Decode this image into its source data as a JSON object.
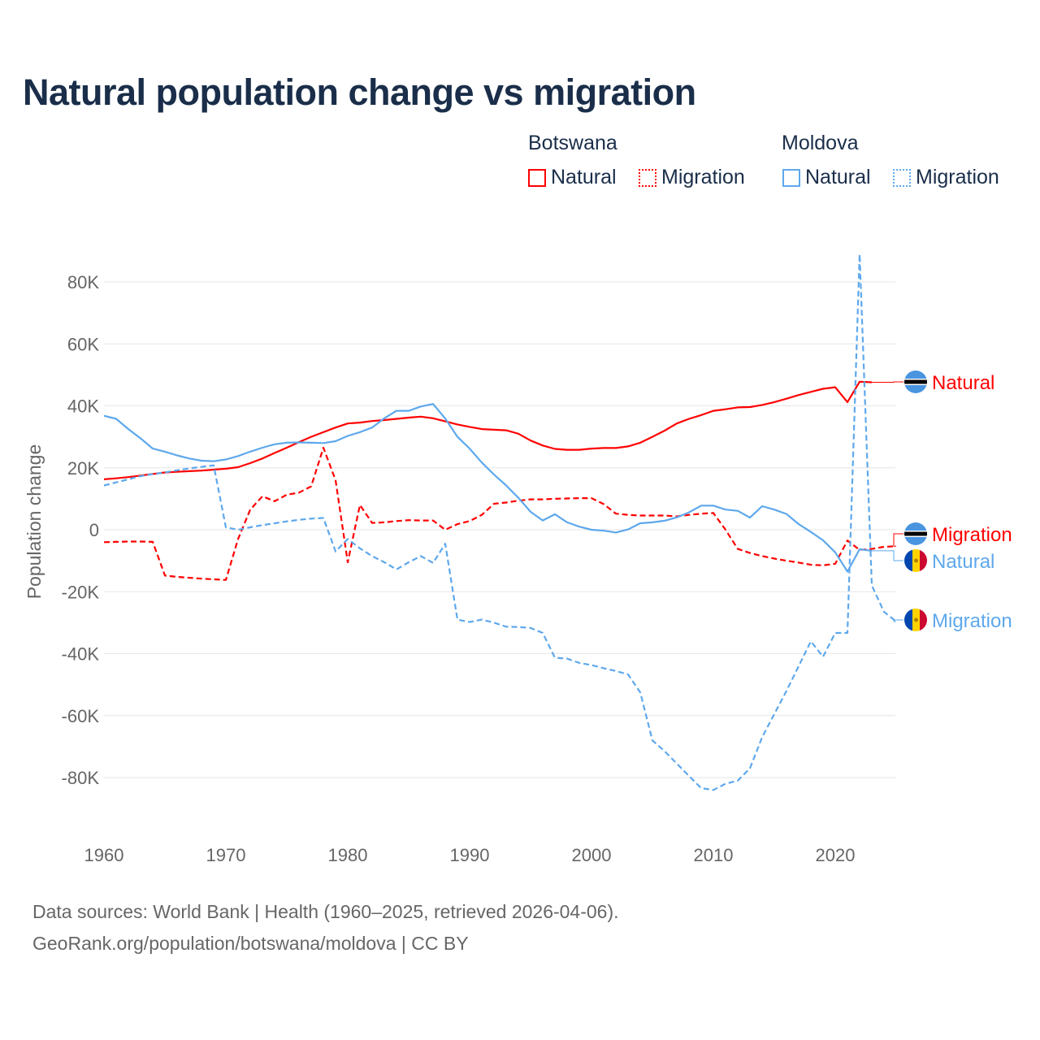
{
  "title": "Natural population change vs migration",
  "legend": {
    "groups": [
      {
        "name": "Botswana",
        "items": [
          "Natural",
          "Migration"
        ]
      },
      {
        "name": "Moldova",
        "items": [
          "Natural",
          "Migration"
        ]
      }
    ]
  },
  "footer": {
    "line1": "Data sources: World Bank | Health (1960–2025, retrieved 2026-04-06).",
    "line2": "GeoRank.org/population/botswana/moldova | CC BY"
  },
  "colors": {
    "botswana": "#ff0000",
    "moldova": "#5ea8ec",
    "grid": "#e6e6e6",
    "axis_text": "#666666"
  },
  "chart_data": {
    "type": "line",
    "title": "Natural population change vs migration",
    "xlabel": "",
    "ylabel": "Population change",
    "xlim": [
      1960,
      2025
    ],
    "ylim": [
      -100000,
      95000
    ],
    "x_ticks": [
      1960,
      1970,
      1980,
      1990,
      2000,
      2010,
      2020
    ],
    "x_tick_labels": [
      "1960",
      "1970",
      "1980",
      "1990",
      "2000",
      "2010",
      "2020"
    ],
    "y_ticks": [
      80000,
      60000,
      40000,
      20000,
      0,
      -20000,
      -40000,
      -60000,
      -80000
    ],
    "y_tick_labels": [
      "80K",
      "60K",
      "40K",
      "20K",
      "0",
      "-20K",
      "-40K",
      "-60K",
      "-80K"
    ],
    "grid": true,
    "legend_position": "top-right",
    "x_start": 1960,
    "series": [
      {
        "name": "Botswana Natural",
        "country": "Botswana",
        "kind": "Natural",
        "end_label": "Natural",
        "color": "#ff0000",
        "dashed": false,
        "flag": "botswana-flag",
        "values": [
          16.3,
          16.6,
          17,
          17.5,
          18,
          18.5,
          18.7,
          18.9,
          19.1,
          19.4,
          19.7,
          20.2,
          21.5,
          23,
          24.8,
          26.5,
          28.3,
          30,
          31.5,
          33,
          34.3,
          34.6,
          35.1,
          35.4,
          35.8,
          36.2,
          36.5,
          36,
          35,
          34,
          33.2,
          32.5,
          32.3,
          32.1,
          31,
          28.8,
          27.2,
          26.1,
          25.8,
          25.8,
          26.2,
          26.4,
          26.4,
          26.9,
          28.1,
          30,
          32,
          34.3,
          35.8,
          37,
          38.4,
          38.9,
          39.5,
          39.6,
          40.3,
          41.2,
          42.3,
          43.5,
          44.5,
          45.5,
          46,
          41.2,
          47.8,
          47.6,
          null,
          null
        ]
      },
      {
        "name": "Botswana Migration",
        "country": "Botswana",
        "kind": "Migration",
        "end_label": "Migration",
        "color": "#ff0000",
        "dashed": true,
        "flag": "botswana-flag",
        "values": [
          -4,
          -3.9,
          -3.8,
          -3.8,
          -3.9,
          -14.8,
          -15.2,
          -15.5,
          -15.8,
          -16,
          -16.2,
          -3,
          6.5,
          10.8,
          9.2,
          11.3,
          12,
          14,
          26.5,
          16,
          -10.5,
          8,
          2.2,
          2.4,
          2.8,
          3.1,
          3,
          3,
          0,
          1.8,
          2.8,
          4.8,
          8.4,
          8.8,
          9.4,
          9.8,
          9.8,
          10,
          10.1,
          10.2,
          10.2,
          8.3,
          5.2,
          4.8,
          4.6,
          4.6,
          4.6,
          4.3,
          4.8,
          5.2,
          5.4,
          0,
          -6.2,
          -7.5,
          -8.5,
          -9.3,
          -10,
          -10.6,
          -11.3,
          -11.5,
          -11,
          -3.5,
          -6.5,
          -6.2,
          -5.5,
          -5.3
        ]
      },
      {
        "name": "Moldova Natural",
        "country": "Moldova",
        "kind": "Natural",
        "end_label": "Natural",
        "color": "#5ea8ec",
        "dashed": false,
        "flag": "moldova-flag",
        "values": [
          36.8,
          35.8,
          32.5,
          29.5,
          26.2,
          25.2,
          24,
          23,
          22.3,
          22.1,
          22.7,
          23.8,
          25.2,
          26.5,
          27.6,
          28.1,
          28.2,
          28.1,
          28,
          28.6,
          30.3,
          31.5,
          33,
          36,
          38.4,
          38.4,
          39.8,
          40.6,
          35.9,
          30,
          26.2,
          21.7,
          17.8,
          14.3,
          10.3,
          5.8,
          3,
          5,
          2.4,
          1,
          0,
          -0.3,
          -0.9,
          0.1,
          2.1,
          2.4,
          2.9,
          4,
          5.6,
          7.8,
          7.8,
          6.5,
          6.1,
          3.9,
          7.6,
          6.5,
          5.1,
          1.8,
          -0.7,
          -3.4,
          -7.3,
          -13.5,
          -6.3,
          -6.8,
          null,
          null
        ]
      },
      {
        "name": "Moldova Migration",
        "country": "Moldova",
        "kind": "Migration",
        "end_label": "Migration",
        "color": "#5ea8ec",
        "dashed": true,
        "flag": "moldova-flag",
        "values": [
          14.3,
          15.3,
          16.3,
          17.3,
          18,
          18.5,
          19.2,
          19.8,
          20.3,
          20.8,
          0.8,
          0,
          0.8,
          1.5,
          2.1,
          2.7,
          3.2,
          3.6,
          3.8,
          -7,
          -3,
          -6,
          -8.5,
          -10.5,
          -12.8,
          -10.5,
          -8.5,
          -10.7,
          -4.5,
          -29,
          -29.8,
          -29,
          -30,
          -31.3,
          -31.4,
          -31.7,
          -33.3,
          -41.3,
          -41.6,
          -43,
          -43.7,
          -44.7,
          -45.6,
          -46.7,
          -52.5,
          -68,
          -71.5,
          -75.5,
          -79.5,
          -83.4,
          -84,
          -82,
          -81,
          -77,
          -67,
          -59.5,
          -52,
          -44,
          -36,
          -41,
          -33.3,
          -33.3,
          89,
          -18,
          -26.5,
          -29.6
        ]
      }
    ],
    "value_unit": "thousands"
  }
}
